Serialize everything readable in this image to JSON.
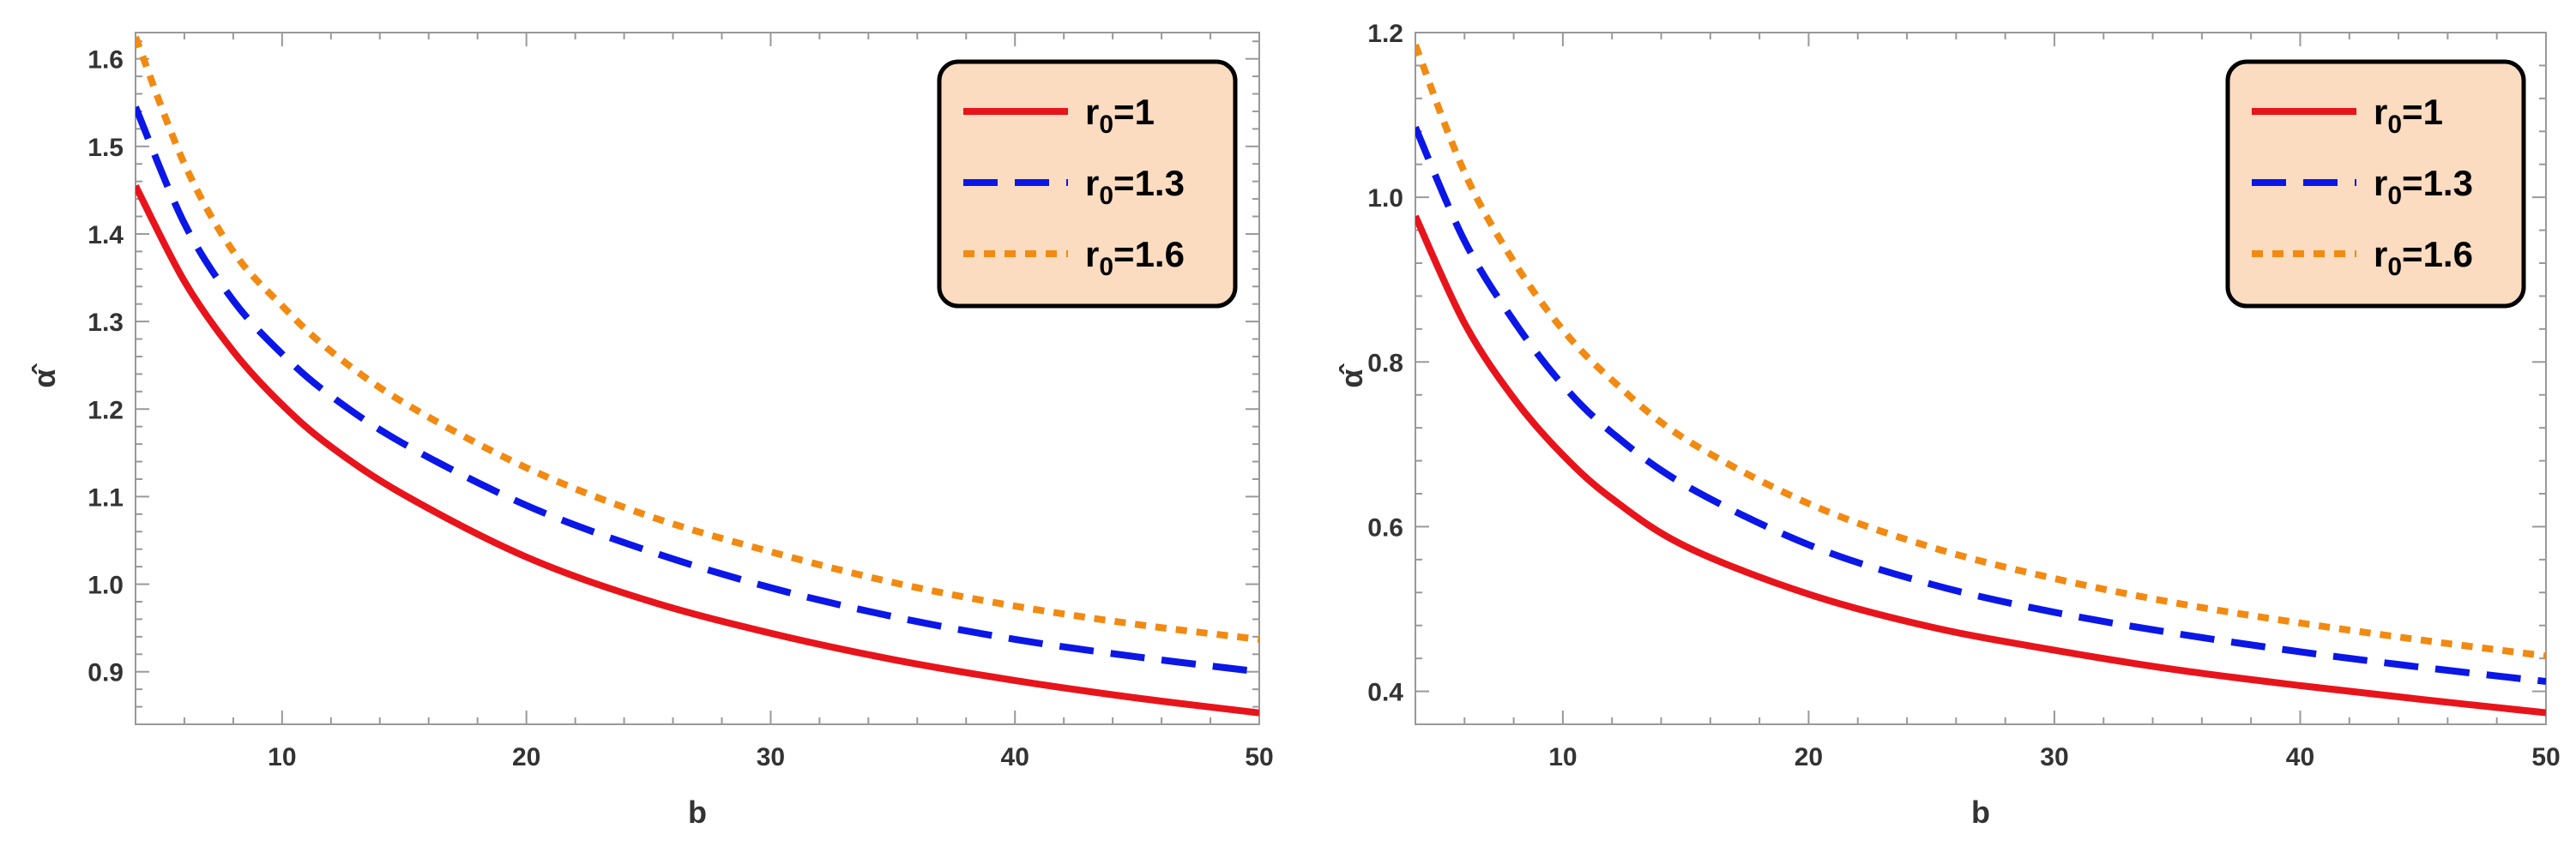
{
  "chart_data": [
    {
      "type": "line",
      "title": "",
      "xlabel": "b",
      "ylabel": "α̂",
      "xlim": [
        4,
        50
      ],
      "ylim": [
        0.84,
        1.63
      ],
      "xticks": [
        "10",
        "20",
        "30",
        "40",
        "50"
      ],
      "yticks": [
        "0.9",
        "1.0",
        "1.1",
        "1.2",
        "1.3",
        "1.4",
        "1.5",
        "1.6"
      ],
      "legend_position": "top-right",
      "series": [
        {
          "name": "r0=1",
          "label_main": "r",
          "label_sub": "0",
          "label_value": "=1",
          "color": "#e8141b",
          "dash": "solid",
          "x": [
            4,
            6,
            8,
            10,
            12,
            15,
            20,
            25,
            30,
            35,
            40,
            45,
            50
          ],
          "y": [
            1.455,
            1.346,
            1.266,
            1.205,
            1.157,
            1.102,
            1.031,
            0.981,
            0.944,
            0.914,
            0.89,
            0.87,
            0.853
          ]
        },
        {
          "name": "r0=1.3",
          "label_main": "r",
          "label_sub": "0",
          "label_value": "=1.3",
          "color": "#0b17e6",
          "dash": "dashed",
          "x": [
            4,
            6,
            8,
            10,
            12,
            15,
            20,
            25,
            30,
            35,
            40,
            45,
            50
          ],
          "y": [
            1.545,
            1.412,
            1.324,
            1.263,
            1.215,
            1.16,
            1.09,
            1.038,
            0.996,
            0.963,
            0.937,
            0.917,
            0.9
          ]
        },
        {
          "name": "r0=1.6",
          "label_main": "r",
          "label_sub": "0",
          "label_value": "=1.6",
          "color": "#f28a12",
          "dash": "dotted",
          "x": [
            4,
            6,
            8,
            10,
            12,
            15,
            20,
            25,
            30,
            35,
            40,
            45,
            50
          ],
          "y": [
            1.625,
            1.48,
            1.38,
            1.318,
            1.266,
            1.207,
            1.133,
            1.078,
            1.037,
            1.002,
            0.975,
            0.954,
            0.937
          ]
        }
      ]
    },
    {
      "type": "line",
      "title": "",
      "xlabel": "b",
      "ylabel": "α̂",
      "xlim": [
        4,
        50
      ],
      "ylim": [
        0.36,
        1.2
      ],
      "xticks": [
        "10",
        "20",
        "30",
        "40",
        "50"
      ],
      "yticks": [
        "0.4",
        "0.6",
        "0.8",
        "1.0",
        "1.2"
      ],
      "legend_position": "top-right",
      "series": [
        {
          "name": "r0=1",
          "label_main": "r",
          "label_sub": "0",
          "label_value": "=1",
          "color": "#e8141b",
          "dash": "solid",
          "x": [
            4,
            6,
            8,
            10,
            12,
            15,
            20,
            25,
            30,
            35,
            40,
            45,
            50
          ],
          "y": [
            0.977,
            0.847,
            0.756,
            0.687,
            0.634,
            0.576,
            0.518,
            0.478,
            0.45,
            0.426,
            0.407,
            0.39,
            0.374
          ]
        },
        {
          "name": "r0=1.3",
          "label_main": "r",
          "label_sub": "0",
          "label_value": "=1.3",
          "color": "#0b17e6",
          "dash": "dashed",
          "x": [
            4,
            6,
            8,
            10,
            12,
            15,
            20,
            25,
            30,
            35,
            40,
            45,
            50
          ],
          "y": [
            1.085,
            0.947,
            0.85,
            0.772,
            0.714,
            0.65,
            0.578,
            0.53,
            0.496,
            0.47,
            0.448,
            0.429,
            0.412
          ]
        },
        {
          "name": "r0=1.6",
          "label_main": "r",
          "label_sub": "0",
          "label_value": "=1.6",
          "color": "#f28a12",
          "dash": "dotted",
          "x": [
            4,
            6,
            8,
            10,
            12,
            15,
            20,
            25,
            30,
            35,
            40,
            45,
            50
          ],
          "y": [
            1.185,
            1.03,
            0.922,
            0.839,
            0.778,
            0.706,
            0.628,
            0.575,
            0.537,
            0.507,
            0.483,
            0.462,
            0.443
          ]
        }
      ]
    }
  ]
}
